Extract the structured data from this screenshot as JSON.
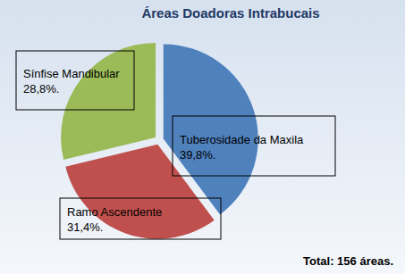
{
  "chart_data": {
    "type": "pie",
    "title": "Áreas Doadoras Intrabucais",
    "categories": [
      "Tuberosidade da Maxila",
      "Ramo Ascendente",
      "Sínfise Mandibular"
    ],
    "values": [
      39.8,
      31.4,
      28.8
    ],
    "value_labels": [
      "39,8%.",
      "31,4%.",
      "28,8%."
    ],
    "colors": [
      "#4f81bd",
      "#c0504d",
      "#9bbb59"
    ],
    "data_labels": true,
    "annotations": [
      "Total: 156 áreas."
    ]
  }
}
